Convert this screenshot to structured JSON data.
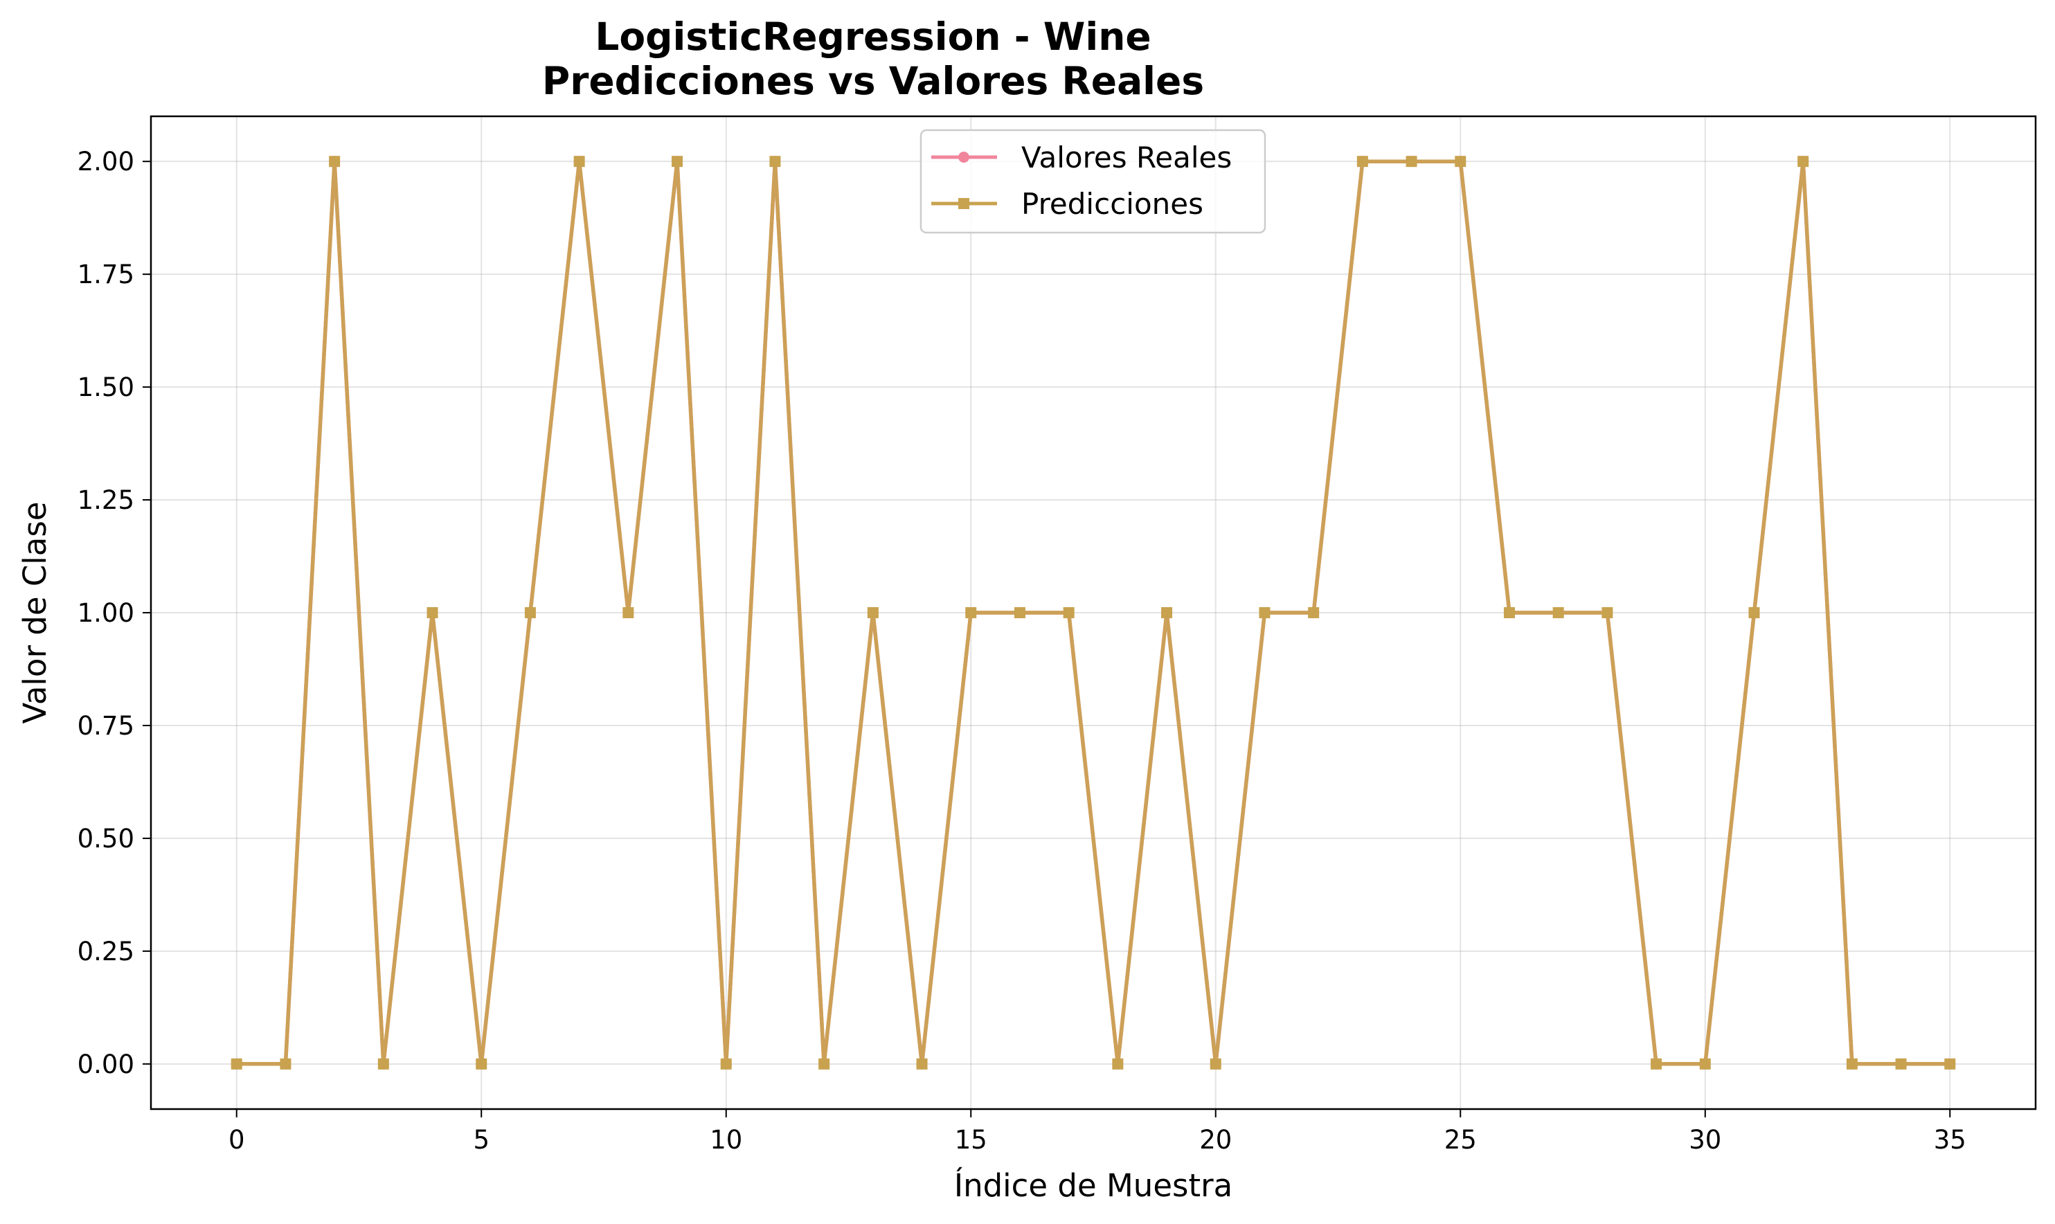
{
  "chart_data": {
    "type": "line",
    "title_line1": "LogisticRegression - Wine",
    "title_line2": "Predicciones vs Valores Reales",
    "xlabel": "Índice de Muestra",
    "ylabel": "Valor de Clase",
    "xlim": [
      -1.75,
      36.75
    ],
    "ylim": [
      -0.1,
      2.1
    ],
    "xticks": [
      0,
      5,
      10,
      15,
      20,
      25,
      30,
      35
    ],
    "xtick_labels": [
      "0",
      "5",
      "10",
      "15",
      "20",
      "25",
      "30",
      "35"
    ],
    "yticks": [
      0,
      0.25,
      0.5,
      0.75,
      1.0,
      1.25,
      1.5,
      1.75,
      2.0
    ],
    "ytick_labels": [
      "0.00",
      "0.25",
      "0.50",
      "0.75",
      "1.00",
      "1.25",
      "1.50",
      "1.75",
      "2.00"
    ],
    "grid": true,
    "legend_position": "upper center",
    "x": [
      0,
      1,
      2,
      3,
      4,
      5,
      6,
      7,
      8,
      9,
      10,
      11,
      12,
      13,
      14,
      15,
      16,
      17,
      18,
      19,
      20,
      21,
      22,
      23,
      24,
      25,
      26,
      27,
      28,
      29,
      30,
      31,
      32,
      33,
      34,
      35
    ],
    "series": [
      {
        "name": "Valores Reales",
        "color": "#f0859c",
        "marker": "circle",
        "values": [
          0,
          0,
          2,
          0,
          1,
          0,
          1,
          2,
          1,
          2,
          0,
          2,
          0,
          1,
          0,
          1,
          1,
          1,
          0,
          1,
          0,
          1,
          1,
          2,
          2,
          2,
          1,
          1,
          1,
          0,
          0,
          1,
          2,
          0,
          0,
          0
        ]
      },
      {
        "name": "Predicciones",
        "color": "#c8a24f",
        "marker": "square",
        "values": [
          0,
          0,
          2,
          0,
          1,
          0,
          1,
          2,
          1,
          2,
          0,
          2,
          0,
          1,
          0,
          1,
          1,
          1,
          0,
          1,
          0,
          1,
          1,
          2,
          2,
          2,
          1,
          1,
          1,
          0,
          0,
          1,
          2,
          0,
          0,
          0
        ]
      }
    ]
  }
}
